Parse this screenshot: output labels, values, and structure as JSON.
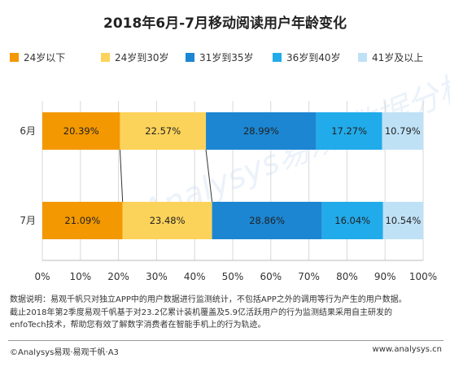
{
  "chart_data": {
    "type": "bar",
    "orientation": "horizontal",
    "stacked": true,
    "title": "2018年6月-7月移动阅读用户年龄变化",
    "categories": [
      "6月",
      "7月"
    ],
    "series": [
      {
        "name": "24岁以下",
        "color": "#F39800",
        "values": [
          20.39,
          21.09
        ],
        "labels": [
          "20.39%",
          "21.09%"
        ]
      },
      {
        "name": "24岁到30岁",
        "color": "#FCD35A",
        "values": [
          22.57,
          23.48
        ],
        "labels": [
          "22.57%",
          "23.48%"
        ]
      },
      {
        "name": "31岁到35岁",
        "color": "#1C86D2",
        "values": [
          28.99,
          28.86
        ],
        "labels": [
          "28.99%",
          "28.86%"
        ]
      },
      {
        "name": "36岁到40岁",
        "color": "#22ABEA",
        "values": [
          17.27,
          16.04
        ],
        "labels": [
          "17.27%",
          "16.04%"
        ]
      },
      {
        "name": "41岁及以上",
        "color": "#BFE1F6",
        "values": [
          10.79,
          10.54
        ],
        "labels": [
          "10.79%",
          "10.54%"
        ]
      }
    ],
    "xlim": [
      0,
      100
    ],
    "xticks": [
      "0%",
      "10%",
      "20%",
      "30%",
      "40%",
      "50%",
      "60%",
      "70%",
      "80%",
      "90%",
      "100%"
    ],
    "grid": true,
    "legend_position": "top"
  },
  "notes": [
    "数据说明：易观千帆只对独立APP中的用户数据进行监测统计，不包括APP之外的调用等行为产生的用户数据。",
    "截止2018年第2季度易观千帆基于对23.2亿累计装机覆盖及5.9亿活跃用户的行为监测结果采用自主研发的",
    "enfoTech技术，帮助您有效了解数字消费者在智能手机上的行为轨迹。"
  ],
  "footer": {
    "left": "©Analysys易观·易观千帆·A3",
    "right": "www.analysys.cn"
  },
  "watermark": "Analysys易观 数据分析"
}
